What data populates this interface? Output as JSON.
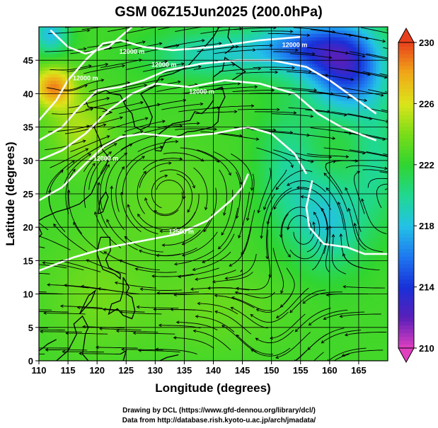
{
  "title": "GSM 06Z15Jun2025 (200.0hPa)",
  "chart_data": {
    "type": "heatmap",
    "title": "GSM 06Z15Jun2025 (200.0hPa)",
    "xlabel": "Longitude (degrees)",
    "ylabel": "Latitude  (degrees)",
    "xlim": [
      110,
      170
    ],
    "ylim": [
      0,
      50
    ],
    "x_ticks": [
      110,
      115,
      120,
      125,
      130,
      135,
      140,
      145,
      150,
      155,
      160,
      165
    ],
    "y_ticks": [
      0,
      5,
      10,
      15,
      20,
      25,
      30,
      35,
      40,
      45
    ],
    "grid": true,
    "colorbar": {
      "range": [
        210,
        230
      ],
      "ticks": [
        210,
        214,
        218,
        222,
        226,
        230
      ],
      "extend": "both",
      "colormap": [
        "#e040c0",
        "#5a1fb8",
        "#1830d8",
        "#1e78f0",
        "#23c2e6",
        "#20d890",
        "#30d530",
        "#7adc18",
        "#dce41a",
        "#f0a818",
        "#e8401c"
      ]
    },
    "contour_labels": [
      {
        "text": "12000 m",
        "lon": 118,
        "lat": 42
      },
      {
        "text": "12000 m",
        "lon": 126,
        "lat": 46
      },
      {
        "text": "12000 m",
        "lon": 131.5,
        "lat": 44
      },
      {
        "text": "12000 m",
        "lon": 138,
        "lat": 40
      },
      {
        "text": "12000 m",
        "lon": 154,
        "lat": 47
      },
      {
        "text": "12000 m",
        "lon": 121.5,
        "lat": 30
      },
      {
        "text": "12500 m",
        "lon": 134.5,
        "lat": 19
      }
    ]
  },
  "credits": {
    "line1": "Drawing by DCL (https://www.gfd-dennou.org/library/dcl/)",
    "line2": "Data from http://database.rish.kyoto-u.ac.jp/arch/jmadata/"
  }
}
